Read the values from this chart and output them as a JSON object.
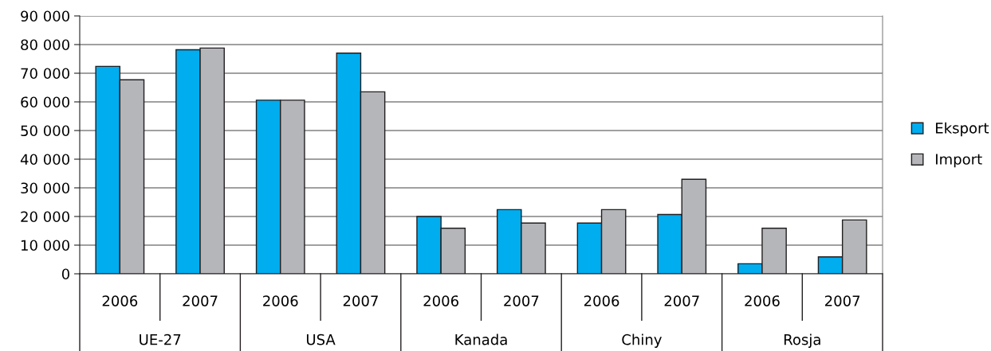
{
  "chart_data": {
    "type": "bar",
    "categories": [
      "2006",
      "2007",
      "2006",
      "2007",
      "2006",
      "2007",
      "2006",
      "2007",
      "2006",
      "2007"
    ],
    "series": [
      {
        "name": "Eksport",
        "color": "#00adef",
        "values": [
          72400,
          78200,
          60600,
          77000,
          20000,
          22400,
          17700,
          20700,
          3500,
          5900
        ]
      },
      {
        "name": "Import",
        "color": "#b5b6ba",
        "values": [
          67700,
          78800,
          60600,
          63500,
          15900,
          17700,
          22400,
          33000,
          15900,
          18800
        ]
      }
    ],
    "annotations": [
      "UE-27",
      "USA",
      "Kanada",
      "Chiny",
      "Rosja"
    ],
    "ylim": [
      0,
      90000
    ],
    "yticks": [
      {
        "value": 0,
        "label": "0"
      },
      {
        "value": 10000,
        "label": "10 000"
      },
      {
        "value": 20000,
        "label": "20 000"
      },
      {
        "value": 30000,
        "label": "30 000"
      },
      {
        "value": 40000,
        "label": "40 000"
      },
      {
        "value": 50000,
        "label": "50 000"
      },
      {
        "value": 60000,
        "label": "60 000"
      },
      {
        "value": 70000,
        "label": "70 000"
      },
      {
        "value": 80000,
        "label": "80 000"
      },
      {
        "value": 90000,
        "label": "90 000"
      }
    ],
    "grid": "y",
    "legend": "right"
  }
}
